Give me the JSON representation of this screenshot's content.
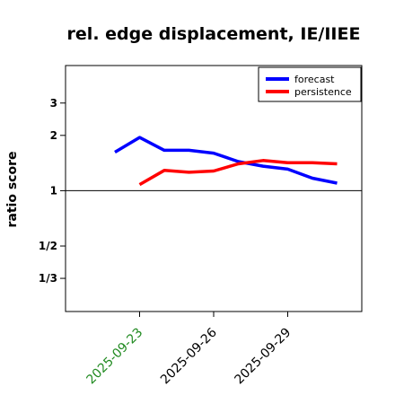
{
  "chart_data": {
    "type": "line",
    "title": "rel. edge displacement, IE/IIEE",
    "ylabel": "ratio score",
    "xlabel": "",
    "y_scale": "log",
    "ylim": [
      0.22,
      4.8
    ],
    "y_ticks": [
      {
        "value": 0.333333,
        "label": "1/3"
      },
      {
        "value": 0.5,
        "label": "1/2"
      },
      {
        "value": 1,
        "label": "1"
      },
      {
        "value": 2,
        "label": "2"
      },
      {
        "value": 3,
        "label": "3"
      }
    ],
    "reference_line": 1,
    "x_ticks": [
      "2025-09-23",
      "2025-09-26",
      "2025-09-29"
    ],
    "x_tick_color": "#228B22",
    "x_tick_colors": [
      "#228B22",
      "#000000",
      "#000000"
    ],
    "xlim": [
      "2025-09-20",
      "2025-10-02"
    ],
    "x": [
      "2025-09-22",
      "2025-09-23",
      "2025-09-24",
      "2025-09-25",
      "2025-09-26",
      "2025-09-27",
      "2025-09-28",
      "2025-09-29",
      "2025-09-30",
      "2025-10-01"
    ],
    "series": [
      {
        "name": "forecast",
        "color": "#0000ff",
        "values": [
          1.62,
          1.95,
          1.66,
          1.66,
          1.6,
          1.44,
          1.36,
          1.31,
          1.17,
          1.1
        ]
      },
      {
        "name": "persistence",
        "color": "#ff0000",
        "values": [
          null,
          1.08,
          1.29,
          1.26,
          1.28,
          1.4,
          1.46,
          1.42,
          1.42,
          1.4
        ]
      }
    ],
    "legend_position": "top-right",
    "grid": false
  }
}
